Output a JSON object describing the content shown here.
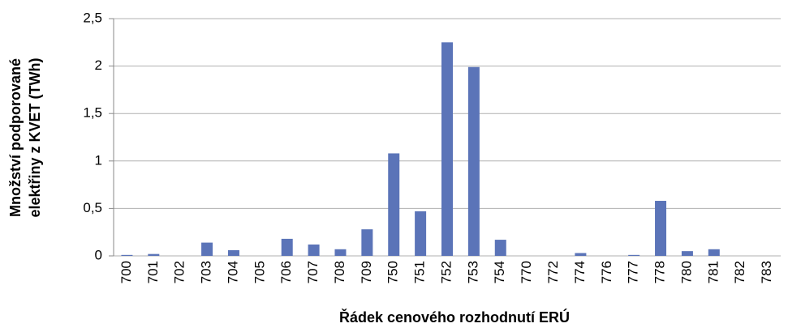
{
  "chart_data": {
    "type": "bar",
    "xlabel": "Řádek cenového rozhodnutí ERÚ",
    "ylabel": [
      "Množství podporované",
      "elektřiny z KVET (TWh)"
    ],
    "categories": [
      "700",
      "701",
      "702",
      "703",
      "704",
      "705",
      "706",
      "707",
      "708",
      "709",
      "750",
      "751",
      "752",
      "753",
      "754",
      "770",
      "772",
      "774",
      "776",
      "777",
      "778",
      "780",
      "781",
      "782",
      "783"
    ],
    "values": [
      0.01,
      0.02,
      0,
      0.14,
      0.06,
      0,
      0.18,
      0.12,
      0.07,
      0.28,
      1.08,
      0.47,
      2.25,
      1.99,
      0.17,
      0,
      0,
      0.03,
      0,
      0.01,
      0.58,
      0.05,
      0.07,
      0,
      0
    ],
    "color": "#5b74b8",
    "ylim": [
      0,
      2.5
    ],
    "yticks": [
      0,
      {
        "value": 0.5,
        "label": "0,5"
      },
      1,
      {
        "value": 1.5,
        "label": "1,5"
      },
      2,
      {
        "value": 2.5,
        "label": "2,5"
      }
    ],
    "grid": true
  }
}
